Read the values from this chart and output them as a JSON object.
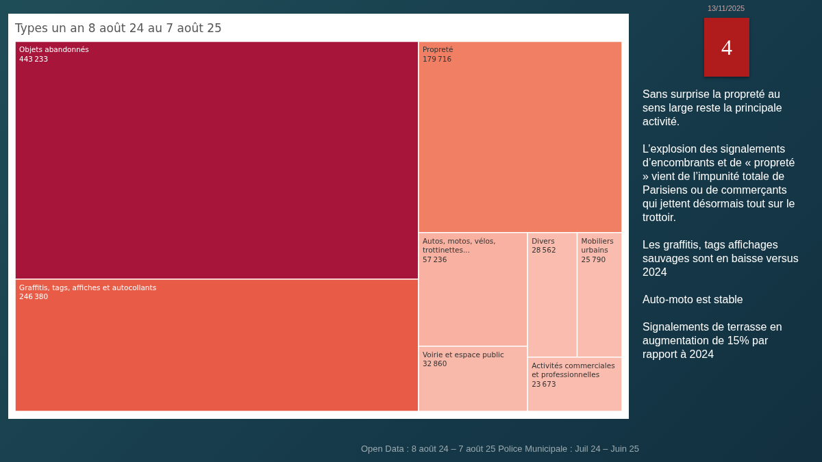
{
  "chart_data": {
    "type": "other",
    "title": "Types un an 8 août 24 au 7 août 25",
    "categories": [
      "Objets abandonnés",
      "Graffitis, tags, affiches et autocollants",
      "Propreté",
      "Autos, motos, vélos, trottinettes...",
      "Voirie et espace public",
      "Divers",
      "Mobiliers urbains",
      "Activités commerciales et professionnelles"
    ],
    "values": [
      443233,
      246380,
      179716,
      57236,
      32860,
      28562,
      25790,
      23673
    ],
    "colors": [
      "#a8153a",
      "#e85c47",
      "#f07f64",
      "#f9b1a2",
      "#f9b9aa",
      "#f9bcae",
      "#f9bcae",
      "#f9bcae"
    ],
    "data_labels": true,
    "annotations": [
      "13/11/2025",
      "4",
      "Sans surprise la propreté au sens large reste la principale activité.",
      "L’explosion des signalements d’encombrants et de « propreté » vient de l’impunité totale de Parisiens ou de commerçants qui jettent désormais tout sur le trottoir.",
      "Les graffitis, tags affichages sauvages sont en baisse versus 2024",
      "Auto-moto est stable",
      "Signalements de terrasse en augmentation de 15% par rapport à 2024",
      "Open Data : 8 août 24 – 7 août 25 Police Municipale : Juil 24 – Juin 25"
    ]
  }
}
